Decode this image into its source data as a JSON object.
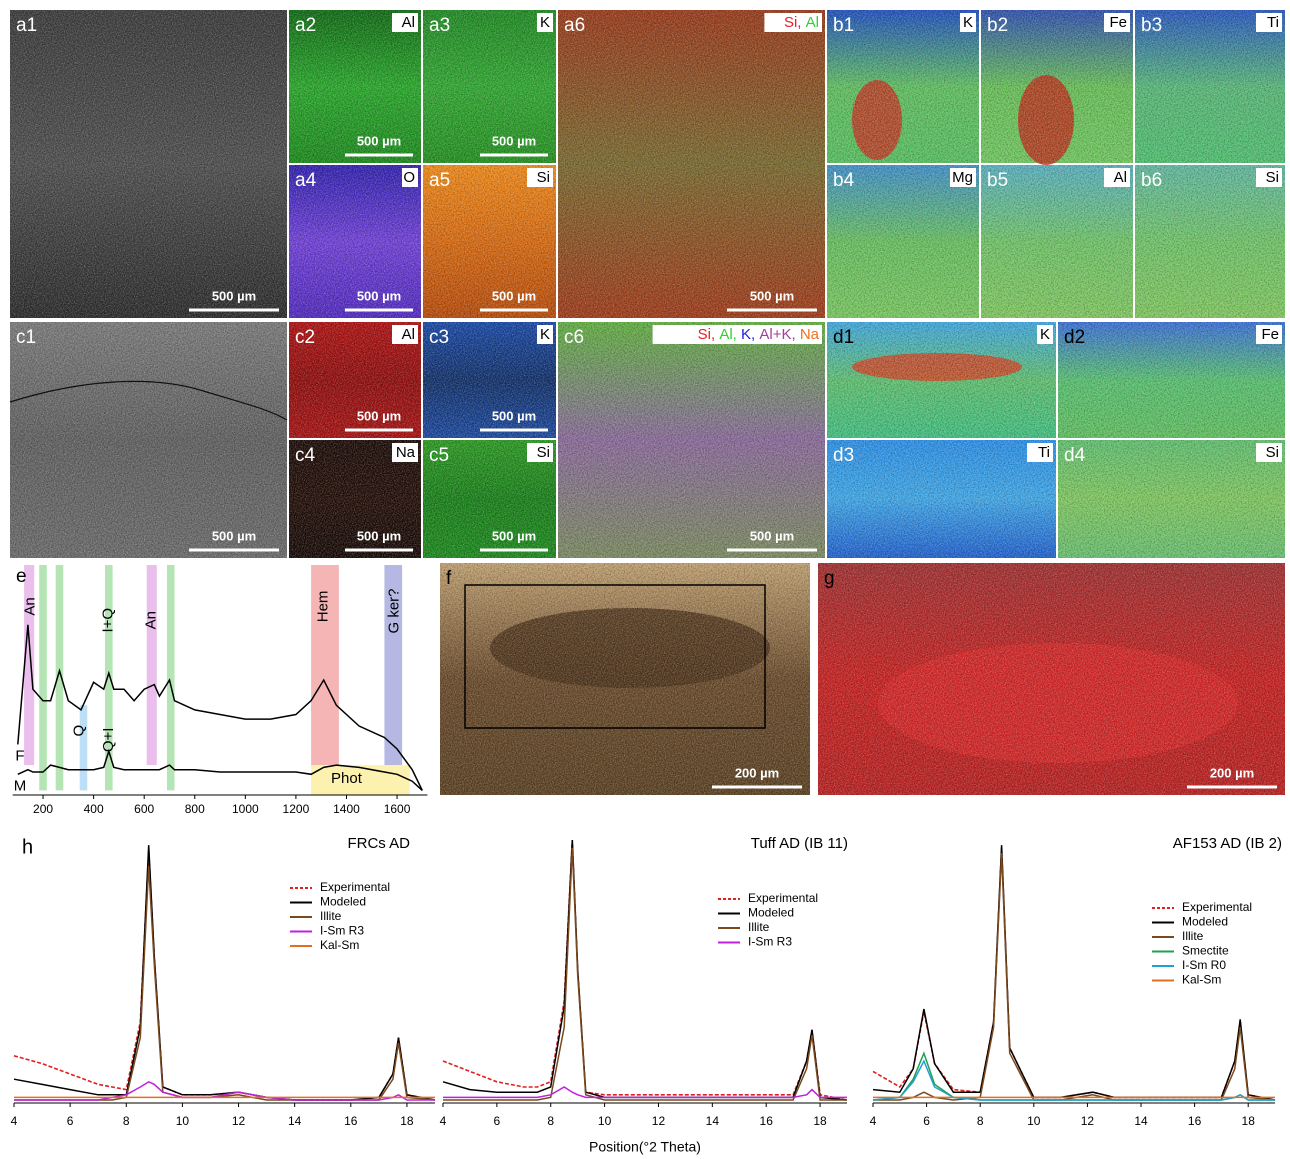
{
  "figure": {
    "panels": [
      {
        "label": "a1",
        "scale_bar": "500 µm"
      },
      {
        "label": "a2",
        "element": "Al",
        "scale_bar": "500 µm"
      },
      {
        "label": "a3",
        "element": "K",
        "scale_bar": "500 µm"
      },
      {
        "label": "a4",
        "element": "O",
        "scale_bar": "500 µm"
      },
      {
        "label": "a5",
        "element": "Si",
        "scale_bar": "500 µm"
      },
      {
        "label": "a6",
        "elements": [
          {
            "text": "Si,",
            "color": "#e8202a"
          },
          {
            "text": "Al",
            "color": "#30d030"
          }
        ],
        "scale_bar": "500 µm"
      },
      {
        "label": "b1",
        "element": "K"
      },
      {
        "label": "b2",
        "element": "Fe"
      },
      {
        "label": "b3",
        "element": "Ti"
      },
      {
        "label": "b4",
        "element": "Mg"
      },
      {
        "label": "b5",
        "element": "Al"
      },
      {
        "label": "b6",
        "element": "Si"
      },
      {
        "label": "c1",
        "scale_bar": "500 µm"
      },
      {
        "label": "c2",
        "element": "Al",
        "scale_bar": "500 µm"
      },
      {
        "label": "c3",
        "element": "K",
        "scale_bar": "500 µm"
      },
      {
        "label": "c4",
        "element": "Na",
        "scale_bar": "500 µm"
      },
      {
        "label": "c5",
        "element": "Si",
        "scale_bar": "500 µm"
      },
      {
        "label": "c6",
        "elements": [
          {
            "text": "Si,",
            "color": "#e8202a"
          },
          {
            "text": "Al,",
            "color": "#30d030"
          },
          {
            "text": "K,",
            "color": "#2020e0"
          },
          {
            "text": "Al+K,",
            "color": "#a040a0"
          },
          {
            "text": "Na",
            "color": "#f07020"
          }
        ],
        "scale_bar": "500 µm"
      },
      {
        "label": "d1",
        "element": "K"
      },
      {
        "label": "d2",
        "element": "Fe"
      },
      {
        "label": "d3",
        "element": "Ti"
      },
      {
        "label": "d4",
        "element": "Si"
      },
      {
        "label": "f",
        "scale_bar": "200 µm"
      },
      {
        "label": "g",
        "scale_bar": "200 µm"
      }
    ],
    "h_label": "h",
    "h_xlabel": "Position(°2 Theta)"
  },
  "chart_data": [
    {
      "type": "line",
      "panel": "e",
      "x": [
        100,
        140,
        160,
        200,
        230,
        265,
        300,
        350,
        400,
        440,
        460,
        480,
        520,
        560,
        600,
        640,
        660,
        700,
        720,
        800,
        900,
        1000,
        1100,
        1200,
        1260,
        1310,
        1360,
        1450,
        1550,
        1600,
        1660,
        1700
      ],
      "series": [
        {
          "name": "F",
          "color": "#000000",
          "values": [
            22,
            74,
            46,
            41,
            41,
            54,
            41,
            37,
            49,
            46,
            53,
            46,
            46,
            41,
            46,
            48,
            43,
            50,
            41,
            37,
            35,
            33,
            33,
            35,
            41,
            50,
            39,
            30,
            25,
            20,
            11,
            2
          ]
        },
        {
          "name": "M",
          "color": "#000000",
          "values": [
            9,
            11,
            10,
            10,
            13,
            12,
            11,
            11,
            11,
            12,
            19,
            12,
            11,
            11,
            11,
            11,
            11,
            13,
            11,
            11,
            10,
            10,
            10,
            10,
            9,
            12,
            13,
            12,
            10,
            9,
            6,
            2
          ]
        }
      ],
      "bands": [
        {
          "x": [
            125,
            165
          ],
          "y": [
            13,
            100
          ],
          "color": "#e6b4ea"
        },
        {
          "x": [
            185,
            215
          ],
          "y": [
            2,
            100
          ],
          "color": "#a8e0a8"
        },
        {
          "x": [
            250,
            280
          ],
          "y": [
            2,
            100
          ],
          "color": "#a8e0a8"
        },
        {
          "x": [
            345,
            375
          ],
          "y": [
            2,
            39
          ],
          "color": "#b0d8f4"
        },
        {
          "x": [
            445,
            475
          ],
          "y": [
            2,
            100
          ],
          "color": "#a8e0a8"
        },
        {
          "x": [
            610,
            650
          ],
          "y": [
            13,
            100
          ],
          "color": "#e6b4ea"
        },
        {
          "x": [
            690,
            720
          ],
          "y": [
            2,
            100
          ],
          "color": "#a8e0a8"
        },
        {
          "x": [
            1260,
            1370
          ],
          "y": [
            13,
            100
          ],
          "color": "#f4a8a8"
        },
        {
          "x": [
            1550,
            1620
          ],
          "y": [
            13,
            100
          ],
          "color": "#a8acde"
        },
        {
          "x": [
            1260,
            1650
          ],
          "y": [
            0,
            13
          ],
          "color": "#fbeea0"
        }
      ],
      "annotations": [
        {
          "text": "An",
          "x": 150,
          "y": 82,
          "rotate": true
        },
        {
          "text": "I+Q",
          "x": 460,
          "y": 76,
          "rotate": true
        },
        {
          "text": "Q+I",
          "x": 460,
          "y": 24,
          "rotate": true
        },
        {
          "text": "Q",
          "x": 345,
          "y": 28,
          "rotate": true
        },
        {
          "text": "An",
          "x": 630,
          "y": 76,
          "rotate": true
        },
        {
          "text": "Hem",
          "x": 1310,
          "y": 82,
          "rotate": true
        },
        {
          "text": "G ker?",
          "x": 1590,
          "y": 80,
          "rotate": true
        },
        {
          "text": "Phot",
          "x": 1400,
          "y": 7,
          "rotate": false
        }
      ],
      "xlim": [
        80,
        1720
      ],
      "xticks": [
        200,
        400,
        600,
        800,
        1000,
        1200,
        1400,
        1600
      ],
      "ylim": [
        0,
        100
      ]
    },
    {
      "type": "line",
      "title": "FRCs AD",
      "x": [
        4,
        5,
        6,
        7,
        7.5,
        8,
        8.5,
        8.8,
        9,
        9.3,
        10,
        11,
        12,
        13,
        14,
        16,
        17,
        17.5,
        17.7,
        18,
        19
      ],
      "series": [
        {
          "name": "Experimental",
          "color": "#e02020",
          "dashed": true,
          "values": [
            17,
            14,
            10,
            6,
            5,
            4,
            30,
            96,
            55,
            5,
            2,
            2,
            3,
            1,
            0,
            0,
            1,
            10,
            24,
            2,
            0
          ]
        },
        {
          "name": "Modeled",
          "color": "#000000",
          "values": [
            8,
            6,
            4,
            2,
            2,
            2,
            28,
            98,
            55,
            5,
            2,
            2,
            3,
            1,
            0,
            0,
            1,
            10,
            24,
            2,
            0
          ]
        },
        {
          "name": "Illite",
          "color": "#7a4a1f",
          "values": [
            0,
            0,
            0,
            0,
            0,
            1,
            24,
            90,
            52,
            3,
            1,
            1,
            2,
            0,
            0,
            0,
            0,
            8,
            22,
            1,
            0
          ]
        },
        {
          "name": "I-Sm R3",
          "color": "#c020e0",
          "values": [
            0,
            0,
            0,
            0,
            1,
            2,
            5,
            7,
            6,
            3,
            1,
            1,
            3,
            1,
            0,
            0,
            0,
            1,
            2,
            0,
            0
          ]
        },
        {
          "name": "Kal-Sm",
          "color": "#e07020",
          "values": [
            1,
            1,
            1,
            1,
            1,
            1,
            1,
            1,
            1,
            1,
            1,
            1,
            1,
            1,
            1,
            1,
            1,
            1,
            1,
            1,
            1
          ]
        }
      ],
      "xlim": [
        4,
        19
      ],
      "xticks": [
        4,
        6,
        8,
        10,
        12,
        14,
        16,
        18
      ],
      "ylim": [
        0,
        100
      ]
    },
    {
      "type": "line",
      "title": "Tuff AD (IB 11)",
      "x": [
        4,
        5,
        6,
        7,
        7.5,
        8,
        8.5,
        8.8,
        9,
        9.3,
        10,
        11,
        12,
        13,
        14,
        16,
        17,
        17.5,
        17.7,
        18,
        19
      ],
      "series": [
        {
          "name": "Experimental",
          "color": "#e02020",
          "dashed": true,
          "values": [
            15,
            11,
            7,
            5,
            5,
            7,
            38,
            100,
            50,
            3,
            2,
            2,
            2,
            2,
            2,
            2,
            2,
            15,
            27,
            2,
            0
          ]
        },
        {
          "name": "Modeled",
          "color": "#000000",
          "values": [
            7,
            4,
            3,
            3,
            3,
            5,
            36,
            100,
            50,
            3,
            1,
            1,
            1,
            1,
            1,
            1,
            1,
            15,
            27,
            1,
            0
          ]
        },
        {
          "name": "Illite",
          "color": "#7a4a1f",
          "values": [
            0,
            0,
            0,
            0,
            0,
            1,
            28,
            97,
            48,
            2,
            0,
            0,
            0,
            0,
            0,
            0,
            0,
            12,
            25,
            0,
            0
          ]
        },
        {
          "name": "I-Sm R3",
          "color": "#c020e0",
          "values": [
            1,
            1,
            1,
            1,
            1,
            2,
            5,
            3,
            2,
            1,
            1,
            1,
            1,
            1,
            1,
            1,
            1,
            2,
            4,
            1,
            1
          ]
        }
      ],
      "xlim": [
        4,
        19
      ],
      "xticks": [
        4,
        6,
        8,
        10,
        12,
        14,
        16,
        18
      ],
      "ylim": [
        0,
        100
      ]
    },
    {
      "type": "line",
      "title": "AF153 AD (IB 2)",
      "x": [
        4,
        5,
        5.5,
        5.9,
        6.3,
        7,
        8,
        8.5,
        8.8,
        9.1,
        10,
        11,
        12.2,
        13,
        14,
        16,
        17,
        17.5,
        17.7,
        18,
        19
      ],
      "series": [
        {
          "name": "Experimental",
          "color": "#e02020",
          "dashed": true,
          "values": [
            11,
            5,
            12,
            34,
            14,
            4,
            3,
            30,
            97,
            20,
            1,
            1,
            3,
            1,
            1,
            1,
            1,
            15,
            30,
            2,
            0
          ]
        },
        {
          "name": "Modeled",
          "color": "#000000",
          "values": [
            4,
            3,
            12,
            35,
            14,
            3,
            3,
            30,
            98,
            20,
            1,
            1,
            3,
            1,
            1,
            1,
            1,
            15,
            31,
            2,
            0
          ]
        },
        {
          "name": "Illite",
          "color": "#7a4a1f",
          "values": [
            0,
            0,
            1,
            3,
            1,
            0,
            1,
            28,
            95,
            18,
            0,
            0,
            2,
            0,
            0,
            0,
            0,
            12,
            28,
            1,
            0
          ]
        },
        {
          "name": "Smectite",
          "color": "#20a050",
          "values": [
            0,
            1,
            8,
            18,
            6,
            1,
            0,
            0,
            0,
            0,
            0,
            0,
            0,
            0,
            0,
            0,
            0,
            1,
            2,
            0,
            0
          ]
        },
        {
          "name": "I-Sm R0",
          "color": "#20a0d0",
          "values": [
            0,
            1,
            7,
            15,
            5,
            1,
            0,
            0,
            0,
            0,
            0,
            0,
            0,
            0,
            0,
            0,
            0,
            1,
            2,
            0,
            0
          ]
        },
        {
          "name": "Kal-Sm",
          "color": "#e07020",
          "values": [
            1,
            1,
            1,
            1,
            1,
            1,
            1,
            1,
            1,
            1,
            1,
            1,
            1,
            1,
            1,
            1,
            1,
            1,
            1,
            1,
            1
          ]
        }
      ],
      "xlim": [
        4,
        19
      ],
      "xticks": [
        4,
        6,
        8,
        10,
        12,
        14,
        16,
        18
      ],
      "ylim": [
        0,
        100
      ]
    }
  ]
}
